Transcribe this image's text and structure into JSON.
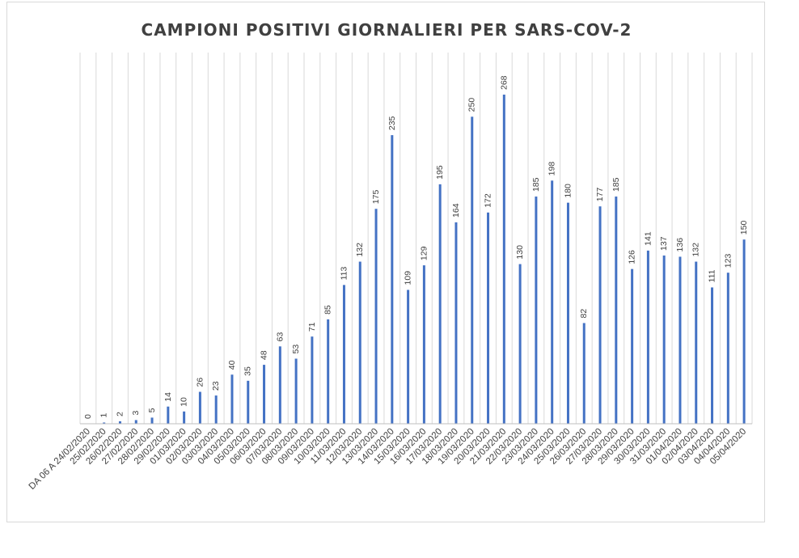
{
  "chart_data": {
    "type": "bar",
    "title": "CAMPIONI POSITIVI GIORNALIERI PER SARS-COV-2",
    "xlabel": "",
    "ylabel": "",
    "ylim": [
      0,
      268
    ],
    "grid": "vertical",
    "legend": "none",
    "bar_color": "#4472c4",
    "categories": [
      "DA 06 A 24/02/2020",
      "25/02/2020",
      "26/02/2020",
      "27/02/2020",
      "28/02/2020",
      "29/02/2020",
      "01/03/2020",
      "02/03/2020",
      "03/03/2020",
      "04/03/2020",
      "05/03/2020",
      "06/03/2020",
      "07/03/2020",
      "08/03/2020",
      "09/03/2020",
      "10/03/2020",
      "11/03/2020",
      "12/03/2020",
      "13/03/2020",
      "14/03/2020",
      "15/03/2020",
      "16/03/2020",
      "17/03/2020",
      "18/03/2020",
      "19/03/2020",
      "20/03/2020",
      "21/03/2020",
      "22/03/2020",
      "23/03/2020",
      "24/03/2020",
      "25/03/2020",
      "26/03/2020",
      "27/03/2020",
      "28/03/2020",
      "29/03/2020",
      "30/03/2020",
      "31/03/2020",
      "01/04/2020",
      "02/04/2020",
      "03/04/2020",
      "04/04/2020",
      "05/04/2020"
    ],
    "values": [
      0,
      1,
      2,
      3,
      5,
      14,
      10,
      26,
      23,
      40,
      35,
      48,
      63,
      53,
      71,
      85,
      113,
      132,
      175,
      235,
      109,
      129,
      195,
      164,
      250,
      172,
      268,
      130,
      185,
      198,
      180,
      82,
      177,
      185,
      126,
      141,
      137,
      136,
      132,
      111,
      123,
      150
    ]
  }
}
